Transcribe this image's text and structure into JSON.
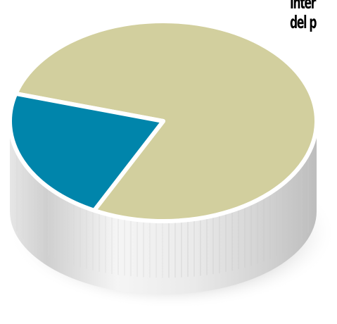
{
  "chart_data": {
    "type": "pie",
    "style": "3d-cylinder",
    "title": "",
    "caption_lines": [
      "Inter",
      "del p"
    ],
    "slices": [
      {
        "value": 78,
        "color": "#d2cf9e"
      },
      {
        "value": 22,
        "color": "#0085ab"
      }
    ]
  },
  "colors": {
    "side_light": "#f2f2f2",
    "side_dark": "#c4c4c4",
    "separator": "#ffffff",
    "shadow": "#d9d9d9"
  }
}
